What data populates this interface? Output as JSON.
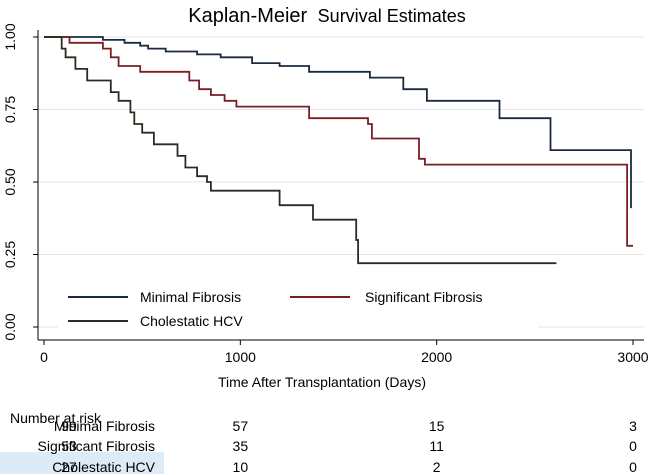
{
  "chart_data": {
    "type": "line",
    "step": true,
    "title_main": "Kaplan-Meier",
    "title_rest": "Survival Estimates",
    "xlabel": "Time After Transplantation (Days)",
    "ylabel": "",
    "xlim": [
      0,
      3000
    ],
    "ylim": [
      0,
      1
    ],
    "xticks": [
      0,
      1000,
      2000,
      3000
    ],
    "xtick_labels": [
      "0",
      "1000",
      "2000",
      "3000"
    ],
    "yticks": [
      0,
      0.25,
      0.5,
      0.75,
      1.0
    ],
    "ytick_labels": [
      "0.00",
      "0.25",
      "0.50",
      "0.75",
      "1.00"
    ],
    "grid": "horizontal",
    "legend_position": "lower-left inside",
    "series": [
      {
        "name": "Minimal Fibrosis",
        "color": "#1b2a41",
        "points": [
          [
            0,
            1.0
          ],
          [
            300,
            1.0
          ],
          [
            300,
            0.99
          ],
          [
            410,
            0.99
          ],
          [
            410,
            0.98
          ],
          [
            490,
            0.98
          ],
          [
            490,
            0.97
          ],
          [
            530,
            0.97
          ],
          [
            530,
            0.96
          ],
          [
            620,
            0.96
          ],
          [
            620,
            0.95
          ],
          [
            780,
            0.95
          ],
          [
            780,
            0.94
          ],
          [
            900,
            0.94
          ],
          [
            900,
            0.93
          ],
          [
            1060,
            0.93
          ],
          [
            1060,
            0.91
          ],
          [
            1200,
            0.91
          ],
          [
            1200,
            0.9
          ],
          [
            1350,
            0.9
          ],
          [
            1350,
            0.88
          ],
          [
            1660,
            0.88
          ],
          [
            1660,
            0.86
          ],
          [
            1830,
            0.86
          ],
          [
            1830,
            0.82
          ],
          [
            1950,
            0.82
          ],
          [
            1950,
            0.78
          ],
          [
            2320,
            0.78
          ],
          [
            2320,
            0.72
          ],
          [
            2580,
            0.72
          ],
          [
            2580,
            0.61
          ],
          [
            2990,
            0.61
          ],
          [
            2990,
            0.41
          ]
        ]
      },
      {
        "name": "Significant Fibrosis",
        "color": "#7a1f24",
        "points": [
          [
            0,
            1.0
          ],
          [
            130,
            1.0
          ],
          [
            130,
            0.98
          ],
          [
            300,
            0.98
          ],
          [
            300,
            0.96
          ],
          [
            340,
            0.96
          ],
          [
            340,
            0.93
          ],
          [
            380,
            0.93
          ],
          [
            380,
            0.9
          ],
          [
            490,
            0.9
          ],
          [
            490,
            0.88
          ],
          [
            740,
            0.88
          ],
          [
            740,
            0.85
          ],
          [
            790,
            0.85
          ],
          [
            790,
            0.82
          ],
          [
            850,
            0.82
          ],
          [
            850,
            0.8
          ],
          [
            920,
            0.8
          ],
          [
            920,
            0.78
          ],
          [
            980,
            0.78
          ],
          [
            980,
            0.76
          ],
          [
            1350,
            0.76
          ],
          [
            1350,
            0.72
          ],
          [
            1650,
            0.72
          ],
          [
            1650,
            0.7
          ],
          [
            1670,
            0.7
          ],
          [
            1670,
            0.65
          ],
          [
            1910,
            0.65
          ],
          [
            1910,
            0.58
          ],
          [
            1940,
            0.58
          ],
          [
            1940,
            0.56
          ],
          [
            2970,
            0.56
          ],
          [
            2970,
            0.28
          ],
          [
            3000,
            0.28
          ]
        ]
      },
      {
        "name": "Cholestatic HCV",
        "color": "#2a2e22",
        "points": [
          [
            0,
            1.0
          ],
          [
            90,
            1.0
          ],
          [
            90,
            0.96
          ],
          [
            110,
            0.96
          ],
          [
            110,
            0.93
          ],
          [
            160,
            0.93
          ],
          [
            160,
            0.89
          ],
          [
            220,
            0.89
          ],
          [
            220,
            0.85
          ],
          [
            340,
            0.85
          ],
          [
            340,
            0.81
          ],
          [
            380,
            0.81
          ],
          [
            380,
            0.78
          ],
          [
            440,
            0.78
          ],
          [
            440,
            0.74
          ],
          [
            460,
            0.74
          ],
          [
            460,
            0.7
          ],
          [
            500,
            0.7
          ],
          [
            500,
            0.67
          ],
          [
            560,
            0.67
          ],
          [
            560,
            0.63
          ],
          [
            680,
            0.63
          ],
          [
            680,
            0.59
          ],
          [
            720,
            0.59
          ],
          [
            720,
            0.55
          ],
          [
            780,
            0.55
          ],
          [
            780,
            0.52
          ],
          [
            830,
            0.52
          ],
          [
            830,
            0.5
          ],
          [
            850,
            0.5
          ],
          [
            850,
            0.47
          ],
          [
            1200,
            0.47
          ],
          [
            1200,
            0.42
          ],
          [
            1370,
            0.42
          ],
          [
            1370,
            0.37
          ],
          [
            1590,
            0.37
          ],
          [
            1590,
            0.3
          ],
          [
            1600,
            0.3
          ],
          [
            1600,
            0.22
          ],
          [
            2610,
            0.22
          ]
        ]
      }
    ]
  },
  "risk_table": {
    "header": "Number at risk",
    "columns_x": [
      0,
      1000,
      2000,
      3000
    ],
    "highlight_color": "#dcebf6",
    "rows": [
      {
        "label": "Minimal Fibrosis",
        "values": [
          "99",
          "57",
          "15",
          "3"
        ]
      },
      {
        "label": "Significant Fibrosis",
        "values": [
          "53",
          "35",
          "11",
          "0"
        ]
      },
      {
        "label": "Cholestatic HCV",
        "values": [
          "27",
          "10",
          "2",
          "0"
        ]
      }
    ]
  }
}
